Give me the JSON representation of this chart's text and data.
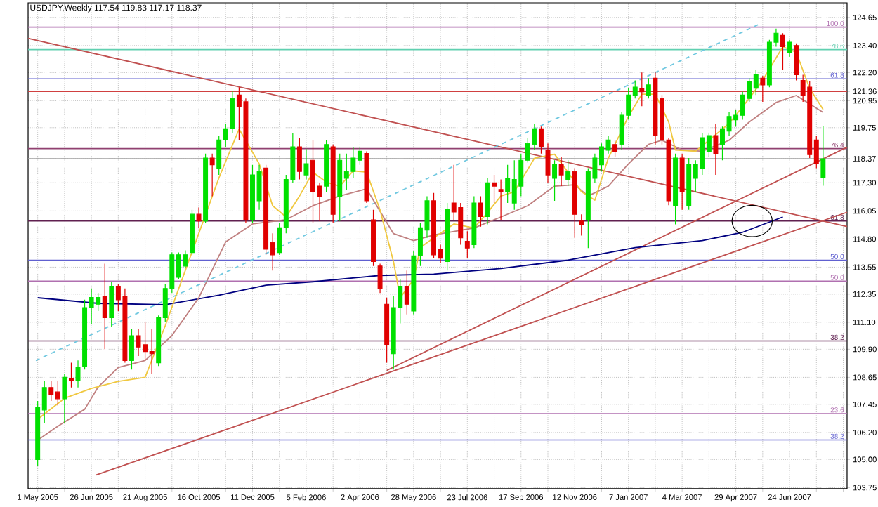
{
  "chart_data": {
    "type": "candlestick",
    "title": "USDJPY,Weekly 117.54 119.83 117.17 118.37",
    "x": [
      "2005-05-01",
      "2005-05-08",
      "2005-05-15",
      "2005-05-22",
      "2005-05-29",
      "2005-06-05",
      "2005-06-12",
      "2005-06-19",
      "2005-06-26",
      "2005-07-03",
      "2005-07-10",
      "2005-07-17",
      "2005-07-24",
      "2005-07-31",
      "2005-08-07",
      "2005-08-14",
      "2005-08-21",
      "2005-08-28",
      "2005-09-04",
      "2005-09-11",
      "2005-09-18",
      "2005-09-25",
      "2005-10-02",
      "2005-10-09",
      "2005-10-16",
      "2005-10-23",
      "2005-10-30",
      "2005-11-06",
      "2005-11-13",
      "2005-11-20",
      "2005-11-27",
      "2005-12-04",
      "2005-12-11",
      "2005-12-18",
      "2005-12-25",
      "2006-01-01",
      "2006-01-08",
      "2006-01-15",
      "2006-01-22",
      "2006-01-29",
      "2006-02-05",
      "2006-02-12",
      "2006-02-19",
      "2006-02-26",
      "2006-03-05",
      "2006-03-12",
      "2006-03-19",
      "2006-03-26",
      "2006-04-02",
      "2006-04-09",
      "2006-04-16",
      "2006-04-23",
      "2006-04-30",
      "2006-05-07",
      "2006-05-14",
      "2006-05-21",
      "2006-05-28",
      "2006-06-04",
      "2006-06-11",
      "2006-06-18",
      "2006-06-25",
      "2006-07-02",
      "2006-07-09",
      "2006-07-16",
      "2006-07-23",
      "2006-07-30",
      "2006-08-06",
      "2006-08-13",
      "2006-08-20",
      "2006-08-27",
      "2006-09-03",
      "2006-09-10",
      "2006-09-17",
      "2006-09-24",
      "2006-10-01",
      "2006-10-08",
      "2006-10-15",
      "2006-10-22",
      "2006-10-29",
      "2006-11-05",
      "2006-11-12",
      "2006-11-19",
      "2006-11-26",
      "2006-12-03",
      "2006-12-10",
      "2006-12-17",
      "2006-12-24",
      "2006-12-31",
      "2007-01-07",
      "2007-01-14",
      "2007-01-21",
      "2007-01-28",
      "2007-02-04",
      "2007-02-11",
      "2007-02-18",
      "2007-02-25",
      "2007-03-04",
      "2007-03-11",
      "2007-03-18",
      "2007-03-25",
      "2007-04-01",
      "2007-04-08",
      "2007-04-15",
      "2007-04-22",
      "2007-04-29",
      "2007-05-06",
      "2007-05-13",
      "2007-05-20",
      "2007-05-27",
      "2007-06-03",
      "2007-06-10",
      "2007-06-17",
      "2007-06-24",
      "2007-07-01",
      "2007-07-08",
      "2007-07-15",
      "2007-07-22",
      "2007-07-29"
    ],
    "ohlc": [
      [
        105.0,
        107.6,
        104.7,
        107.3
      ],
      [
        107.2,
        108.5,
        106.6,
        108.2
      ],
      [
        108.2,
        108.5,
        107.6,
        107.9
      ],
      [
        108.0,
        108.5,
        107.4,
        107.7
      ],
      [
        107.7,
        108.8,
        106.6,
        108.65
      ],
      [
        108.6,
        109.3,
        108.2,
        108.5
      ],
      [
        108.5,
        109.4,
        108.2,
        109.1
      ],
      [
        109.15,
        112.1,
        109.0,
        111.75
      ],
      [
        111.75,
        112.6,
        111.0,
        112.2
      ],
      [
        111.9,
        112.4,
        111.6,
        112.2
      ],
      [
        112.25,
        113.7,
        109.9,
        111.3
      ],
      [
        111.3,
        112.9,
        110.9,
        112.7
      ],
      [
        112.7,
        112.8,
        111.6,
        112.1
      ],
      [
        112.25,
        112.6,
        109.3,
        109.4
      ],
      [
        109.4,
        110.8,
        109.0,
        110.5
      ],
      [
        110.5,
        110.8,
        109.6,
        110.0
      ],
      [
        110.1,
        111.1,
        109.4,
        109.8
      ],
      [
        109.8,
        110.8,
        108.8,
        109.7
      ],
      [
        109.3,
        111.4,
        109.15,
        111.3
      ],
      [
        111.3,
        112.8,
        111.1,
        112.6
      ],
      [
        112.6,
        114.2,
        112.4,
        114.1
      ],
      [
        113.1,
        114.2,
        113.0,
        114.1
      ],
      [
        113.6,
        114.3,
        113.5,
        114.1
      ],
      [
        114.2,
        116.1,
        114.1,
        115.9
      ],
      [
        115.9,
        116.2,
        115.3,
        115.6
      ],
      [
        115.6,
        118.6,
        115.5,
        118.4
      ],
      [
        118.4,
        118.6,
        116.7,
        118.1
      ],
      [
        117.95,
        119.4,
        117.65,
        119.2
      ],
      [
        119.2,
        119.9,
        118.9,
        119.7
      ],
      [
        119.7,
        121.4,
        119.5,
        121.05
      ],
      [
        121.2,
        121.55,
        119.2,
        120.7
      ],
      [
        120.9,
        121.05,
        115.5,
        115.65
      ],
      [
        115.65,
        118.1,
        115.5,
        117.65
      ],
      [
        116.5,
        118.1,
        116.1,
        117.8
      ],
      [
        117.95,
        118.1,
        114.1,
        114.35
      ],
      [
        114.65,
        115.05,
        113.4,
        114.1
      ],
      [
        114.2,
        115.5,
        114.1,
        115.3
      ],
      [
        115.3,
        117.65,
        115.05,
        117.45
      ],
      [
        117.45,
        119.5,
        117.3,
        118.9
      ],
      [
        118.9,
        119.3,
        117.45,
        117.8
      ],
      [
        117.65,
        118.8,
        117.45,
        118.15
      ],
      [
        118.3,
        119.2,
        115.5,
        116.9
      ],
      [
        117.15,
        117.3,
        115.6,
        116.7
      ],
      [
        117.15,
        119.2,
        116.9,
        119.0
      ],
      [
        118.9,
        119.0,
        115.5,
        115.9
      ],
      [
        116.7,
        118.6,
        115.6,
        118.3
      ],
      [
        117.5,
        118.6,
        117.0,
        117.8
      ],
      [
        117.8,
        118.9,
        117.5,
        118.4
      ],
      [
        118.3,
        118.9,
        118.1,
        118.7
      ],
      [
        118.6,
        118.7,
        116.4,
        116.5
      ],
      [
        115.65,
        116.1,
        113.6,
        113.8
      ],
      [
        113.6,
        113.7,
        112.4,
        112.6
      ],
      [
        111.9,
        112.2,
        109.3,
        110.1
      ],
      [
        109.7,
        112.25,
        109.0,
        111.75
      ],
      [
        111.75,
        113.0,
        111.05,
        112.7
      ],
      [
        112.7,
        113.4,
        111.45,
        111.9
      ],
      [
        111.6,
        114.25,
        111.45,
        114.05
      ],
      [
        114.05,
        115.5,
        113.6,
        115.3
      ],
      [
        115.2,
        116.7,
        114.85,
        116.5
      ],
      [
        116.5,
        116.85,
        113.95,
        114.1
      ],
      [
        114.35,
        114.55,
        113.75,
        113.95
      ],
      [
        113.8,
        116.4,
        113.4,
        116.1
      ],
      [
        116.4,
        118.1,
        115.65,
        116.0
      ],
      [
        116.2,
        116.4,
        114.55,
        114.85
      ],
      [
        114.7,
        115.15,
        113.95,
        114.4
      ],
      [
        114.55,
        116.7,
        114.4,
        116.4
      ],
      [
        116.4,
        116.7,
        115.35,
        115.8
      ],
      [
        115.8,
        117.5,
        115.45,
        117.3
      ],
      [
        117.3,
        117.65,
        116.4,
        117.15
      ],
      [
        117.0,
        117.45,
        115.65,
        116.9
      ],
      [
        116.9,
        118.1,
        116.4,
        117.5
      ],
      [
        116.4,
        118.3,
        116.1,
        117.45
      ],
      [
        117.15,
        118.6,
        116.7,
        118.3
      ],
      [
        118.3,
        119.3,
        118.2,
        119.05
      ],
      [
        119.0,
        119.9,
        118.75,
        119.7
      ],
      [
        119.7,
        119.8,
        118.6,
        118.9
      ],
      [
        118.75,
        119.05,
        117.3,
        117.65
      ],
      [
        117.5,
        118.3,
        116.5,
        118.1
      ],
      [
        118.1,
        118.45,
        117.15,
        117.65
      ],
      [
        117.45,
        118.3,
        117.15,
        117.8
      ],
      [
        117.8,
        117.95,
        114.85,
        115.9
      ],
      [
        115.6,
        115.9,
        114.95,
        115.45
      ],
      [
        115.65,
        117.95,
        114.4,
        117.8
      ],
      [
        117.5,
        118.6,
        117.3,
        118.4
      ],
      [
        118.1,
        119.05,
        117.8,
        118.9
      ],
      [
        118.75,
        119.4,
        118.6,
        119.2
      ],
      [
        119.0,
        119.2,
        118.45,
        118.7
      ],
      [
        119.0,
        120.45,
        118.75,
        120.3
      ],
      [
        120.3,
        121.5,
        120.1,
        121.2
      ],
      [
        121.2,
        121.85,
        121.05,
        121.55
      ],
      [
        121.5,
        122.2,
        120.7,
        121.35
      ],
      [
        121.2,
        121.95,
        121.05,
        121.65
      ],
      [
        121.95,
        122.2,
        119.0,
        119.4
      ],
      [
        121.05,
        121.2,
        119.0,
        119.2
      ],
      [
        119.2,
        119.3,
        116.3,
        116.5
      ],
      [
        116.3,
        118.6,
        115.45,
        118.4
      ],
      [
        118.4,
        118.6,
        116.1,
        116.9
      ],
      [
        116.3,
        118.4,
        116.1,
        118.1
      ],
      [
        117.5,
        118.3,
        116.9,
        118.1
      ],
      [
        117.95,
        119.5,
        117.65,
        119.3
      ],
      [
        118.7,
        119.5,
        118.45,
        119.4
      ],
      [
        119.4,
        119.9,
        117.65,
        118.6
      ],
      [
        119.0,
        119.8,
        118.3,
        119.7
      ],
      [
        119.6,
        120.45,
        119.4,
        120.25
      ],
      [
        120.1,
        120.55,
        119.8,
        120.3
      ],
      [
        120.3,
        121.35,
        120.1,
        121.2
      ],
      [
        121.05,
        121.95,
        120.9,
        121.8
      ],
      [
        121.5,
        122.3,
        121.2,
        122.1
      ],
      [
        121.95,
        122.05,
        120.9,
        121.65
      ],
      [
        121.65,
        123.65,
        121.55,
        123.55
      ],
      [
        123.55,
        124.15,
        123.35,
        123.95
      ],
      [
        123.85,
        123.95,
        122.3,
        123.35
      ],
      [
        123.1,
        123.65,
        122.9,
        123.55
      ],
      [
        123.4,
        123.5,
        121.85,
        122.1
      ],
      [
        121.85,
        122.1,
        120.9,
        121.2
      ],
      [
        121.55,
        121.8,
        118.4,
        118.55
      ],
      [
        119.2,
        119.4,
        117.95,
        118.15
      ],
      [
        117.54,
        119.83,
        117.17,
        118.37
      ]
    ],
    "colors": [
      "#00e000",
      "#00e000",
      "#e00000",
      "#e00000",
      "#00e000",
      "#e00000",
      "#00e000",
      "#00e000",
      "#00e000",
      "#00e000",
      "#e00000",
      "#00e000",
      "#e00000",
      "#e00000",
      "#00e000",
      "#e00000",
      "#e00000",
      "#e00000",
      "#00e000",
      "#00e000",
      "#00e000",
      "#00e000",
      "#00e000",
      "#00e000",
      "#e00000",
      "#00e000",
      "#e00000",
      "#00e000",
      "#00e000",
      "#00e000",
      "#e00000",
      "#e00000",
      "#00e000",
      "#00e000",
      "#e00000",
      "#e00000",
      "#00e000",
      "#00e000",
      "#00e000",
      "#e00000",
      "#00e000",
      "#e00000",
      "#e00000",
      "#00e000",
      "#e00000",
      "#00e000",
      "#00e000",
      "#00e000",
      "#00e000",
      "#e00000",
      "#e00000",
      "#e00000",
      "#e00000",
      "#00e000",
      "#00e000",
      "#e00000",
      "#00e000",
      "#00e000",
      "#00e000",
      "#e00000",
      "#e00000",
      "#00e000",
      "#e00000",
      "#e00000",
      "#e00000",
      "#00e000",
      "#e00000",
      "#00e000",
      "#e00000",
      "#e00000",
      "#00e000",
      "#00e000",
      "#00e000",
      "#00e000",
      "#00e000",
      "#e00000",
      "#e00000",
      "#00e000",
      "#e00000",
      "#00e000",
      "#e00000",
      "#e00000",
      "#00e000",
      "#00e000",
      "#00e000",
      "#00e000",
      "#e00000",
      "#00e000",
      "#00e000",
      "#00e000",
      "#e00000",
      "#00e000",
      "#e00000",
      "#e00000",
      "#e00000",
      "#00e000",
      "#e00000",
      "#00e000",
      "#00e000",
      "#00e000",
      "#00e000",
      "#e00000",
      "#00e000",
      "#00e000",
      "#00e000",
      "#00e000",
      "#00e000",
      "#00e000",
      "#e00000",
      "#00e000",
      "#00e000",
      "#e00000",
      "#00e000",
      "#e00000",
      "#e00000",
      "#e00000",
      "#e00000",
      "#00e000"
    ],
    "series": [
      {
        "type": "line",
        "color": "#c05050",
        "x": [
          "2005-04-21",
          "2007-08-23"
        ],
        "values": [
          123.72,
          115.35
        ]
      },
      {
        "type": "line",
        "color": "#c05050",
        "x": [
          "2005-07-01",
          "2007-08-23"
        ],
        "values": [
          104.31,
          115.99
        ]
      },
      {
        "type": "line",
        "color": "#c05050",
        "x": [
          "2006-04-30",
          "2007-08-23"
        ],
        "values": [
          108.96,
          118.88
        ]
      },
      {
        "type": "line",
        "color": "#70c8e0",
        "line_style": "dashed",
        "x": [
          "2005-04-29",
          "2007-05-23"
        ],
        "values": [
          109.4,
          124.34
        ]
      },
      {
        "type": "line",
        "color": "#000080",
        "x": [
          "2005-05-01",
          "2005-07-03",
          "2005-09-11",
          "2005-11-06",
          "2005-12-25",
          "2006-02-12",
          "2006-04-23",
          "2006-06-18",
          "2006-08-27",
          "2006-11-05",
          "2007-01-14",
          "2007-03-25",
          "2007-05-06",
          "2007-06-17"
        ],
        "values": [
          112.19,
          111.94,
          111.88,
          112.3,
          112.75,
          112.9,
          113.18,
          113.24,
          113.49,
          113.86,
          114.42,
          114.73,
          115.1,
          115.78
        ]
      },
      {
        "type": "line",
        "color": "#c08080",
        "x": [
          "2005-05-01",
          "2005-05-22",
          "2005-06-19",
          "2005-07-03",
          "2005-07-24",
          "2005-08-21",
          "2005-09-18",
          "2005-10-16",
          "2005-11-13",
          "2005-12-11",
          "2006-01-15",
          "2006-02-12",
          "2006-03-12",
          "2006-04-09",
          "2006-05-07",
          "2006-05-28",
          "2006-06-18",
          "2006-07-30",
          "2006-08-27",
          "2006-09-24",
          "2006-10-22",
          "2006-11-12",
          "2006-11-26",
          "2006-12-17",
          "2007-01-07",
          "2007-01-28",
          "2007-02-11",
          "2007-03-04",
          "2007-03-25",
          "2007-04-22",
          "2007-05-13",
          "2007-06-10",
          "2007-07-01",
          "2007-07-29"
        ],
        "values": [
          105.86,
          106.48,
          107.23,
          108.22,
          109.09,
          109.4,
          110.51,
          112.19,
          114.67,
          115.47,
          115.66,
          116.28,
          116.71,
          117.03,
          115.04,
          114.73,
          114.98,
          115.29,
          115.78,
          116.28,
          117.15,
          117.21,
          116.71,
          117.15,
          118.14,
          119.01,
          119.19,
          118.76,
          118.7,
          119.19,
          120.0,
          120.87,
          121.18,
          120.43
        ]
      },
      {
        "type": "line",
        "color": "#f0c840",
        "x": [
          "2005-05-01",
          "2005-05-29",
          "2005-06-26",
          "2005-07-24",
          "2005-08-21",
          "2005-09-11",
          "2005-10-09",
          "2005-11-06",
          "2005-11-27",
          "2005-12-18",
          "2006-01-01",
          "2006-01-15",
          "2006-01-29",
          "2006-02-12",
          "2006-02-26",
          "2006-03-12",
          "2006-03-26",
          "2006-04-09",
          "2006-04-23",
          "2006-05-07",
          "2006-05-14",
          "2006-05-28",
          "2006-06-04",
          "2006-06-18",
          "2006-07-09",
          "2006-07-30",
          "2006-08-13",
          "2006-08-27",
          "2006-09-10",
          "2006-10-01",
          "2006-10-22",
          "2006-11-05",
          "2006-11-19",
          "2006-12-03",
          "2006-12-17",
          "2007-01-07",
          "2007-01-21",
          "2007-02-04",
          "2007-02-18",
          "2007-02-25",
          "2007-03-18",
          "2007-04-01",
          "2007-04-22",
          "2007-05-13",
          "2007-05-27",
          "2007-06-17",
          "2007-07-01",
          "2007-07-15",
          "2007-07-29"
        ],
        "values": [
          106.79,
          107.72,
          108.16,
          108.47,
          108.65,
          110.95,
          114.23,
          117.52,
          119.69,
          118.14,
          116.28,
          115.78,
          116.71,
          117.77,
          117.33,
          117.15,
          117.83,
          117.77,
          116.09,
          113.8,
          112.19,
          113.0,
          114.42,
          114.85,
          115.47,
          115.29,
          115.97,
          116.71,
          116.9,
          118.39,
          118.57,
          117.77,
          116.9,
          116.53,
          118.39,
          120.25,
          121.24,
          121.24,
          120.0,
          118.76,
          118.7,
          119.19,
          119.94,
          121.05,
          121.86,
          123.35,
          123.1,
          121.49,
          120.56
        ]
      }
    ],
    "ref_lines": [
      {
        "axis": "y",
        "value": 124.22,
        "color": "#b070b0"
      },
      {
        "axis": "y",
        "value": 123.22,
        "color": "#60d0b0"
      },
      {
        "axis": "y",
        "value": 121.92,
        "color": "#6060d0"
      },
      {
        "axis": "y",
        "value": 121.36,
        "color": "#d04040"
      },
      {
        "axis": "y",
        "value": 118.82,
        "color": "#904070"
      },
      {
        "axis": "y",
        "value": 118.37,
        "color": "#a0a0a0"
      },
      {
        "axis": "y",
        "value": 115.6,
        "color": "#602050"
      },
      {
        "axis": "y",
        "value": 113.86,
        "color": "#6060d0"
      },
      {
        "axis": "y",
        "value": 112.93,
        "color": "#b070b0"
      },
      {
        "axis": "y",
        "value": 110.27,
        "color": "#602050"
      },
      {
        "axis": "y",
        "value": 107.04,
        "color": "#b070b0"
      },
      {
        "axis": "y",
        "value": 105.87,
        "color": "#6060d0"
      }
    ],
    "annotations": [
      {
        "text": "100.0",
        "x": "2007-08-21",
        "y": 124.22
      },
      {
        "text": "78.6",
        "x": "2007-08-21",
        "y": 123.22
      },
      {
        "text": "61.8",
        "x": "2007-08-21",
        "y": 121.92
      },
      {
        "text": "76.4",
        "x": "2007-08-21",
        "y": 118.82
      },
      {
        "text": "61.8",
        "x": "2007-08-21",
        "y": 115.6
      },
      {
        "text": "50.0",
        "x": "2007-08-21",
        "y": 113.86
      },
      {
        "text": "50.0",
        "x": "2007-08-21",
        "y": 112.93
      },
      {
        "text": "38.2",
        "x": "2007-08-21",
        "y": 110.27
      },
      {
        "text": "23.6",
        "x": "2007-08-21",
        "y": 107.04
      },
      {
        "text": "38.2",
        "x": "2007-08-21",
        "y": 105.87
      }
    ],
    "xlim": [
      "2005-04-21",
      "2007-08-23"
    ],
    "ylim": [
      103.7,
      125.3
    ],
    "xticks": [
      {
        "value": "2005-05-01",
        "label": "1 May 2005"
      },
      {
        "value": "2005-05-29",
        "label": null
      },
      {
        "value": "2005-06-26",
        "label": "26 Jun 2005"
      },
      {
        "value": "2005-07-24",
        "label": null
      },
      {
        "value": "2005-08-21",
        "label": "21 Aug 2005"
      },
      {
        "value": "2005-09-18",
        "label": null
      },
      {
        "value": "2005-10-16",
        "label": "16 Oct 2005"
      },
      {
        "value": "2005-11-13",
        "label": null
      },
      {
        "value": "2005-12-11",
        "label": "11 Dec 2005"
      },
      {
        "value": "2006-01-08",
        "label": null
      },
      {
        "value": "2006-02-05",
        "label": "5 Feb 2006"
      },
      {
        "value": "2006-03-05",
        "label": null
      },
      {
        "value": "2006-04-02",
        "label": "2 Apr 2006"
      },
      {
        "value": "2006-04-30",
        "label": null
      },
      {
        "value": "2006-05-28",
        "label": "28 May 2006"
      },
      {
        "value": "2006-06-25",
        "label": null
      },
      {
        "value": "2006-07-23",
        "label": "23 Jul 2006"
      },
      {
        "value": "2006-08-20",
        "label": null
      },
      {
        "value": "2006-09-17",
        "label": "17 Sep 2006"
      },
      {
        "value": "2006-10-15",
        "label": null
      },
      {
        "value": "2006-11-12",
        "label": "12 Nov 2006"
      },
      {
        "value": "2006-12-10",
        "label": null
      },
      {
        "value": "2007-01-07",
        "label": "7 Jan 2007"
      },
      {
        "value": "2007-02-04",
        "label": null
      },
      {
        "value": "2007-03-04",
        "label": "4 Mar 2007"
      },
      {
        "value": "2007-04-01",
        "label": null
      },
      {
        "value": "2007-04-29",
        "label": "29 Apr 2007"
      },
      {
        "value": "2007-05-27",
        "label": null
      },
      {
        "value": "2007-06-24",
        "label": "24 Jun 2007"
      },
      {
        "value": "2007-07-22",
        "label": null
      },
      {
        "value": "2007-08-19",
        "label": null
      }
    ],
    "yticks": [
      124.65,
      {
        "value": 123.4,
        "label": "123.40"
      },
      {
        "value": 122.2,
        "label": "122.20"
      },
      121.36,
      120.95,
      119.75,
      118.37,
      {
        "value": 117.3,
        "label": "117.30"
      },
      116.05,
      {
        "value": 114.8,
        "label": "114.80"
      },
      113.55,
      112.35,
      {
        "value": 111.1,
        "label": "111.10"
      },
      {
        "value": 109.9,
        "label": "109.90"
      },
      108.65,
      107.45,
      {
        "value": 106.2,
        "label": "106.20"
      },
      {
        "value": 105,
        "label": "105.00"
      },
      103.75
    ],
    "grid": true
  }
}
